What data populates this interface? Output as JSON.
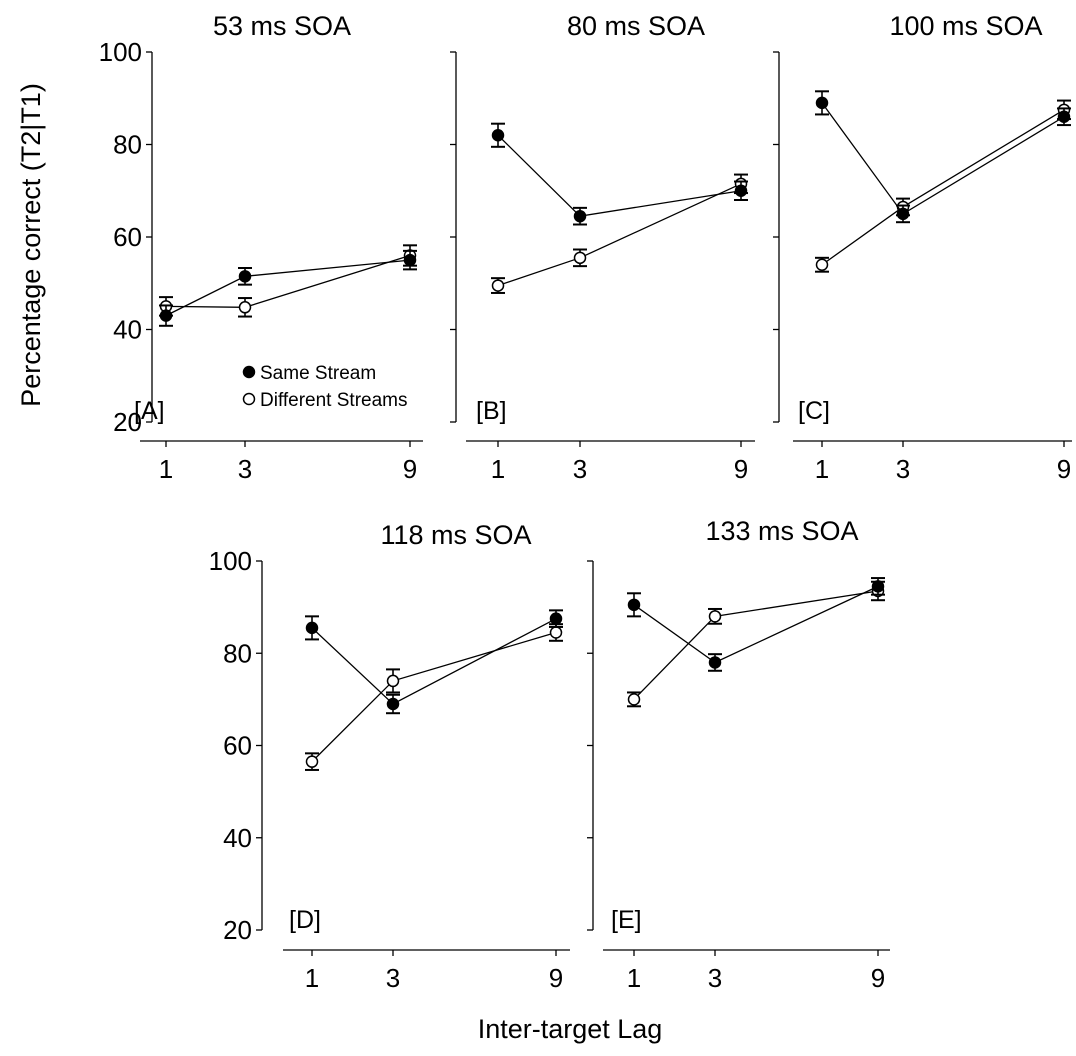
{
  "ylabel": "Percentage correct (T2|T1)",
  "xlabel": "Inter-target Lag",
  "legend": {
    "same": "Same Stream",
    "different": "Different Streams"
  },
  "chart_data": [
    {
      "type": "line",
      "label": "[A]",
      "title": "53 ms SOA",
      "x": [
        1,
        3,
        9
      ],
      "xticks": [
        "1",
        "3",
        "9"
      ],
      "yticks": [
        "20",
        "40",
        "60",
        "80",
        "100"
      ],
      "ylim": [
        20,
        100
      ],
      "series": [
        {
          "name": "Same Stream",
          "key": "same",
          "marker": "filled",
          "values": [
            43,
            51.5,
            55
          ],
          "errors": [
            2.2,
            1.8,
            2
          ]
        },
        {
          "name": "Different Streams",
          "key": "different",
          "marker": "open",
          "values": [
            45,
            44.8,
            56
          ],
          "errors": [
            2,
            2,
            2.2
          ]
        }
      ]
    },
    {
      "type": "line",
      "label": "[B]",
      "title": "80 ms SOA",
      "x": [
        1,
        3,
        9
      ],
      "xticks": [
        "1",
        "3",
        "9"
      ],
      "yticks": [],
      "ylim": [
        20,
        100
      ],
      "series": [
        {
          "name": "Same Stream",
          "key": "same",
          "marker": "filled",
          "values": [
            82,
            64.5,
            70
          ],
          "errors": [
            2.5,
            1.8,
            2
          ]
        },
        {
          "name": "Different Streams",
          "key": "different",
          "marker": "open",
          "values": [
            49.5,
            55.5,
            71.5
          ],
          "errors": [
            1.6,
            1.8,
            2
          ]
        }
      ]
    },
    {
      "type": "line",
      "label": "[C]",
      "title": "100 ms SOA",
      "x": [
        1,
        3,
        9
      ],
      "xticks": [
        "1",
        "3",
        "9"
      ],
      "yticks": [],
      "ylim": [
        20,
        100
      ],
      "series": [
        {
          "name": "Same Stream",
          "key": "same",
          "marker": "filled",
          "values": [
            89,
            65,
            86
          ],
          "errors": [
            2.5,
            1.8,
            1.8
          ]
        },
        {
          "name": "Different Streams",
          "key": "different",
          "marker": "open",
          "values": [
            54,
            66.5,
            87.5
          ],
          "errors": [
            1.5,
            1.8,
            2
          ]
        }
      ]
    },
    {
      "type": "line",
      "label": "[D]",
      "title": "118 ms SOA",
      "x": [
        1,
        3,
        9
      ],
      "xticks": [
        "1",
        "3",
        "9"
      ],
      "yticks": [
        "20",
        "40",
        "60",
        "80",
        "100"
      ],
      "ylim": [
        20,
        100
      ],
      "series": [
        {
          "name": "Same Stream",
          "key": "same",
          "marker": "filled",
          "values": [
            85.5,
            69,
            87.5
          ],
          "errors": [
            2.5,
            2,
            1.8
          ]
        },
        {
          "name": "Different Streams",
          "key": "different",
          "marker": "open",
          "values": [
            56.5,
            74,
            84.5
          ],
          "errors": [
            1.8,
            2.5,
            1.8
          ]
        }
      ]
    },
    {
      "type": "line",
      "label": "[E]",
      "title": "133 ms SOA",
      "x": [
        1,
        3,
        9
      ],
      "xticks": [
        "1",
        "3",
        "9"
      ],
      "yticks": [],
      "ylim": [
        20,
        100
      ],
      "series": [
        {
          "name": "Same Stream",
          "key": "same",
          "marker": "filled",
          "values": [
            90.5,
            78,
            94.5
          ],
          "errors": [
            2.5,
            1.8,
            1.8
          ]
        },
        {
          "name": "Different Streams",
          "key": "different",
          "marker": "open",
          "values": [
            70,
            88,
            93.5
          ],
          "errors": [
            1.5,
            1.6,
            2
          ]
        }
      ]
    }
  ]
}
